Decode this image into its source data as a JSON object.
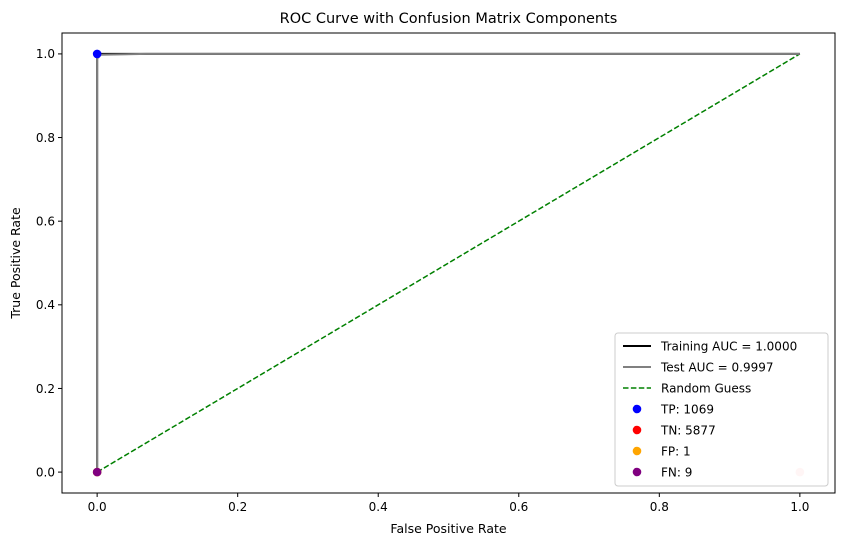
{
  "chart_data": {
    "type": "line",
    "title": "ROC Curve with Confusion Matrix Components",
    "xlabel": "False Positive Rate",
    "ylabel": "True Positive Rate",
    "xlim": [
      -0.05,
      1.05
    ],
    "ylim": [
      -0.05,
      1.05
    ],
    "xticks": [
      0.0,
      0.2,
      0.4,
      0.6,
      0.8,
      1.0
    ],
    "yticks": [
      0.0,
      0.2,
      0.4,
      0.6,
      0.8,
      1.0
    ],
    "xtick_labels": [
      "0.0",
      "0.2",
      "0.4",
      "0.6",
      "0.8",
      "1.0"
    ],
    "ytick_labels": [
      "0.0",
      "0.2",
      "0.4",
      "0.6",
      "0.8",
      "1.0"
    ],
    "grid": false,
    "legend_position": "lower-right",
    "series": [
      {
        "name": "Training AUC = 1.0000",
        "style": "solid",
        "color": "#000000",
        "x": [
          0.0,
          0.0,
          1.0
        ],
        "y": [
          0.0,
          1.0,
          1.0
        ]
      },
      {
        "name": "Test AUC = 0.9997",
        "style": "solid",
        "color": "#808080",
        "x": [
          0.0,
          0.0,
          0.002,
          0.004,
          0.07,
          1.0
        ],
        "y": [
          0.0,
          0.99,
          0.992,
          0.998,
          1.0,
          1.0
        ]
      },
      {
        "name": "Random Guess",
        "style": "dashed",
        "color": "#008000",
        "x": [
          0.0,
          1.0
        ],
        "y": [
          0.0,
          1.0
        ]
      }
    ],
    "points": [
      {
        "name": "TP: 1069",
        "color": "#0000ff",
        "x": 0.0,
        "y": 1.0
      },
      {
        "name": "TN: 5877",
        "color": "#ff0000",
        "x": 1.0,
        "y": 0.0,
        "alpha": 0.2
      },
      {
        "name": "FP: 1",
        "color": "#ffa500",
        "x": 0.0,
        "y": 0.0
      },
      {
        "name": "FN: 9",
        "color": "#800080",
        "x": 0.0,
        "y": 0.0
      }
    ]
  }
}
